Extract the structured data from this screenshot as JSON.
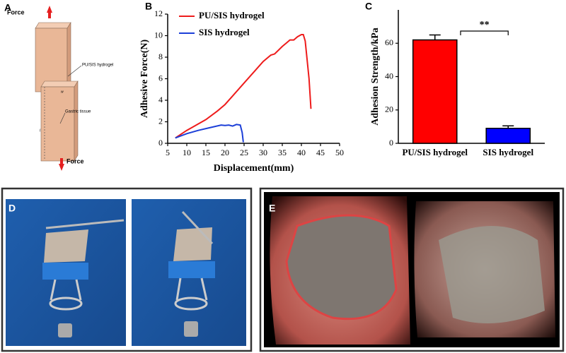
{
  "panel_labels": [
    "A",
    "B",
    "C",
    "D",
    "E"
  ],
  "diagram": {
    "force_top": "Force",
    "force_bottom": "Force",
    "hydrogel_label": "PU/SIS hydrogel",
    "tissue_label": "Gastric tissue",
    "width_symbol": "w",
    "length_symbol": "l"
  },
  "chart_data": [
    {
      "type": "line",
      "xlabel": "Displacement(mm)",
      "ylabel": "Adhesive Force(N)",
      "xlim": [
        5,
        50
      ],
      "xticks": [
        5,
        10,
        15,
        20,
        25,
        30,
        35,
        40,
        45,
        50
      ],
      "ylim": [
        0,
        12
      ],
      "yticks": [
        0,
        2,
        4,
        6,
        8,
        10,
        12
      ],
      "legend": "upper left",
      "series": [
        {
          "name": "PU/SIS hydrogel",
          "color": "#ee1c1c",
          "x": [
            7,
            10,
            12,
            15,
            18,
            20,
            22,
            25,
            28,
            30,
            32,
            33,
            35,
            36,
            37,
            38,
            39,
            40,
            40.5,
            41,
            42,
            42.5
          ],
          "values": [
            0.5,
            1.2,
            1.6,
            2.2,
            3,
            3.6,
            4.4,
            5.6,
            6.8,
            7.6,
            8.2,
            8.3,
            9.0,
            9.3,
            9.6,
            9.6,
            9.9,
            10.1,
            10.1,
            9.5,
            6,
            3.2
          ]
        },
        {
          "name": "SIS hydrogel",
          "color": "#1c3fd8",
          "x": [
            7,
            10,
            13,
            16,
            19,
            20,
            21,
            22,
            23,
            24,
            24.5,
            24.8
          ],
          "values": [
            0.5,
            0.9,
            1.2,
            1.45,
            1.7,
            1.65,
            1.7,
            1.6,
            1.75,
            1.7,
            1.0,
            0.1
          ]
        }
      ]
    },
    {
      "type": "bar",
      "ylabel": "Adhesion Strength/kPa",
      "categories": [
        "PU/SIS hydrogel",
        "SIS hydrogel"
      ],
      "values": [
        62,
        9
      ],
      "errors": [
        3,
        1.5
      ],
      "colors": [
        "#ff0000",
        "#0000ff"
      ],
      "ylim": [
        0,
        80
      ],
      "yticks": [
        0,
        20,
        40,
        60
      ],
      "annotation": "**"
    }
  ]
}
